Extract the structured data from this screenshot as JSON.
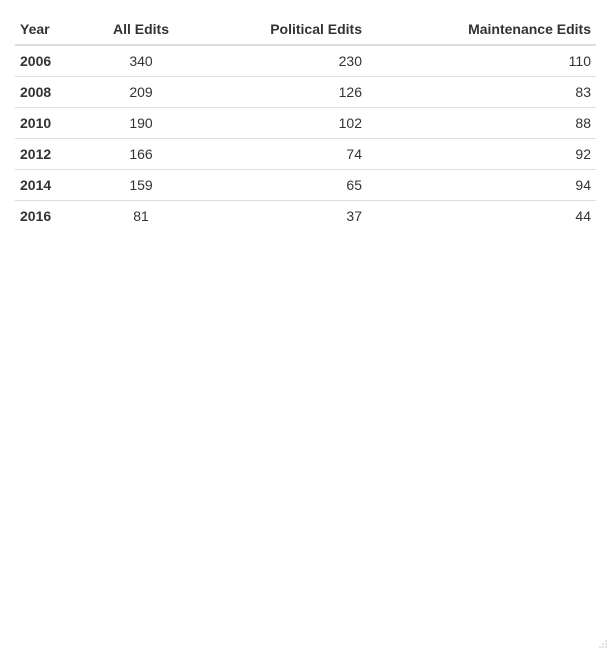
{
  "table": {
    "headers": {
      "year": "Year",
      "all": "All Edits",
      "political": "Political Edits",
      "maintenance": "Maintenance Edits"
    },
    "rows": [
      {
        "year": "2006",
        "all": "340",
        "political": "230",
        "maintenance": "110"
      },
      {
        "year": "2008",
        "all": "209",
        "political": "126",
        "maintenance": "83"
      },
      {
        "year": "2010",
        "all": "190",
        "political": "102",
        "maintenance": "88"
      },
      {
        "year": "2012",
        "all": "166",
        "political": "74",
        "maintenance": "92"
      },
      {
        "year": "2014",
        "all": "159",
        "political": "65",
        "maintenance": "94"
      },
      {
        "year": "2016",
        "all": "81",
        "political": "37",
        "maintenance": "44"
      }
    ]
  },
  "icons": {
    "resize_grip": "resize-grip-icon"
  },
  "colors": {
    "text": "#333333",
    "border": "#dddddd",
    "background": "#ffffff"
  }
}
